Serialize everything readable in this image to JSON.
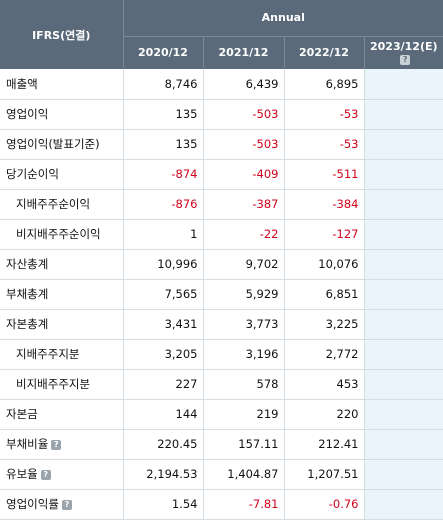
{
  "header": {
    "corner_label": "IFRS(연결)",
    "group_label": "Annual",
    "columns": [
      "2020/12",
      "2021/12",
      "2022/12",
      "2023/12(E)"
    ]
  },
  "rows": [
    {
      "label": "매출액",
      "values": [
        "8,746",
        "6,439",
        "6,895"
      ]
    },
    {
      "label": "영업이익",
      "values": [
        "135",
        "-503",
        "-53"
      ]
    },
    {
      "label": "영업이익(발표기준)",
      "values": [
        "135",
        "-503",
        "-53"
      ]
    },
    {
      "label": "당기순이익",
      "values": [
        "-874",
        "-409",
        "-511"
      ]
    },
    {
      "label": "지배주주순이익",
      "values": [
        "-876",
        "-387",
        "-384"
      ]
    },
    {
      "label": "비지배주주순이익",
      "values": [
        "1",
        "-22",
        "-127"
      ]
    },
    {
      "label": "자산총계",
      "values": [
        "10,996",
        "9,702",
        "10,076"
      ]
    },
    {
      "label": "부채총계",
      "values": [
        "7,565",
        "5,929",
        "6,851"
      ]
    },
    {
      "label": "자본총계",
      "values": [
        "3,431",
        "3,773",
        "3,225"
      ]
    },
    {
      "label": "지배주주지분",
      "values": [
        "3,205",
        "3,196",
        "2,772"
      ]
    },
    {
      "label": "비지배주주지분",
      "values": [
        "227",
        "578",
        "453"
      ]
    },
    {
      "label": "자본금",
      "values": [
        "144",
        "219",
        "220"
      ]
    },
    {
      "label": "부채비율",
      "values": [
        "220.45",
        "157.11",
        "212.41"
      ]
    },
    {
      "label": "유보율",
      "values": [
        "2,194.53",
        "1,404.87",
        "1,207.51"
      ]
    },
    {
      "label": "영업이익률",
      "values": [
        "1.54",
        "-7.81",
        "-0.76"
      ]
    }
  ],
  "colors": {
    "header_bg": "#5b6a7a",
    "negative": "#d0021b",
    "estimate_bg": "#e9f4fb"
  },
  "icons": {
    "help": "question-icon"
  },
  "help_glyph": "?"
}
